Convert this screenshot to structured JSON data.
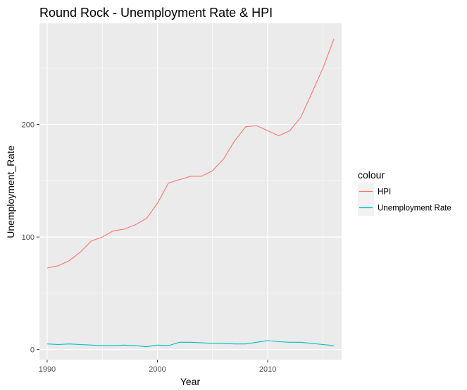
{
  "chart_data": {
    "type": "line",
    "title": "Round Rock - Unemployment Rate & HPI",
    "xlabel": "Year",
    "ylabel": "Unemployment_Rate",
    "xlim": [
      1989.3,
      2016.7
    ],
    "ylim": [
      -9,
      290
    ],
    "x_ticks": [
      1990,
      2000,
      2010
    ],
    "y_ticks": [
      0,
      100,
      200
    ],
    "x_minor_ticks": [
      1995,
      2005,
      2015
    ],
    "y_minor_ticks": [
      50,
      150,
      250
    ],
    "grid": true,
    "legend": {
      "title": "colour",
      "position": "right"
    },
    "x": [
      1990,
      1991,
      1992,
      1993,
      1994,
      1995,
      1996,
      1997,
      1998,
      1999,
      2000,
      2001,
      2002,
      2003,
      2004,
      2005,
      2006,
      2007,
      2008,
      2009,
      2010,
      2011,
      2012,
      2013,
      2014,
      2015,
      2016
    ],
    "series": [
      {
        "name": "HPI",
        "color": "#f8766d",
        "values": [
          72.5,
          74.5,
          79,
          86.5,
          96.5,
          100,
          105.5,
          107,
          111,
          116.5,
          130,
          148,
          151,
          154,
          154,
          159,
          169.5,
          185.5,
          198,
          199,
          194.5,
          190,
          194.5,
          206.5,
          228,
          250,
          276
        ]
      },
      {
        "name": "Unemployment Rate",
        "color": "#00bfc4",
        "values": [
          5,
          4.5,
          5,
          4.5,
          4,
          3.5,
          3.5,
          4,
          3.5,
          2.5,
          4,
          3.5,
          6.5,
          6.5,
          6,
          5.5,
          5.5,
          5,
          5,
          6.5,
          8,
          7,
          6.5,
          6.5,
          5.5,
          4.5,
          3.5
        ]
      }
    ]
  }
}
